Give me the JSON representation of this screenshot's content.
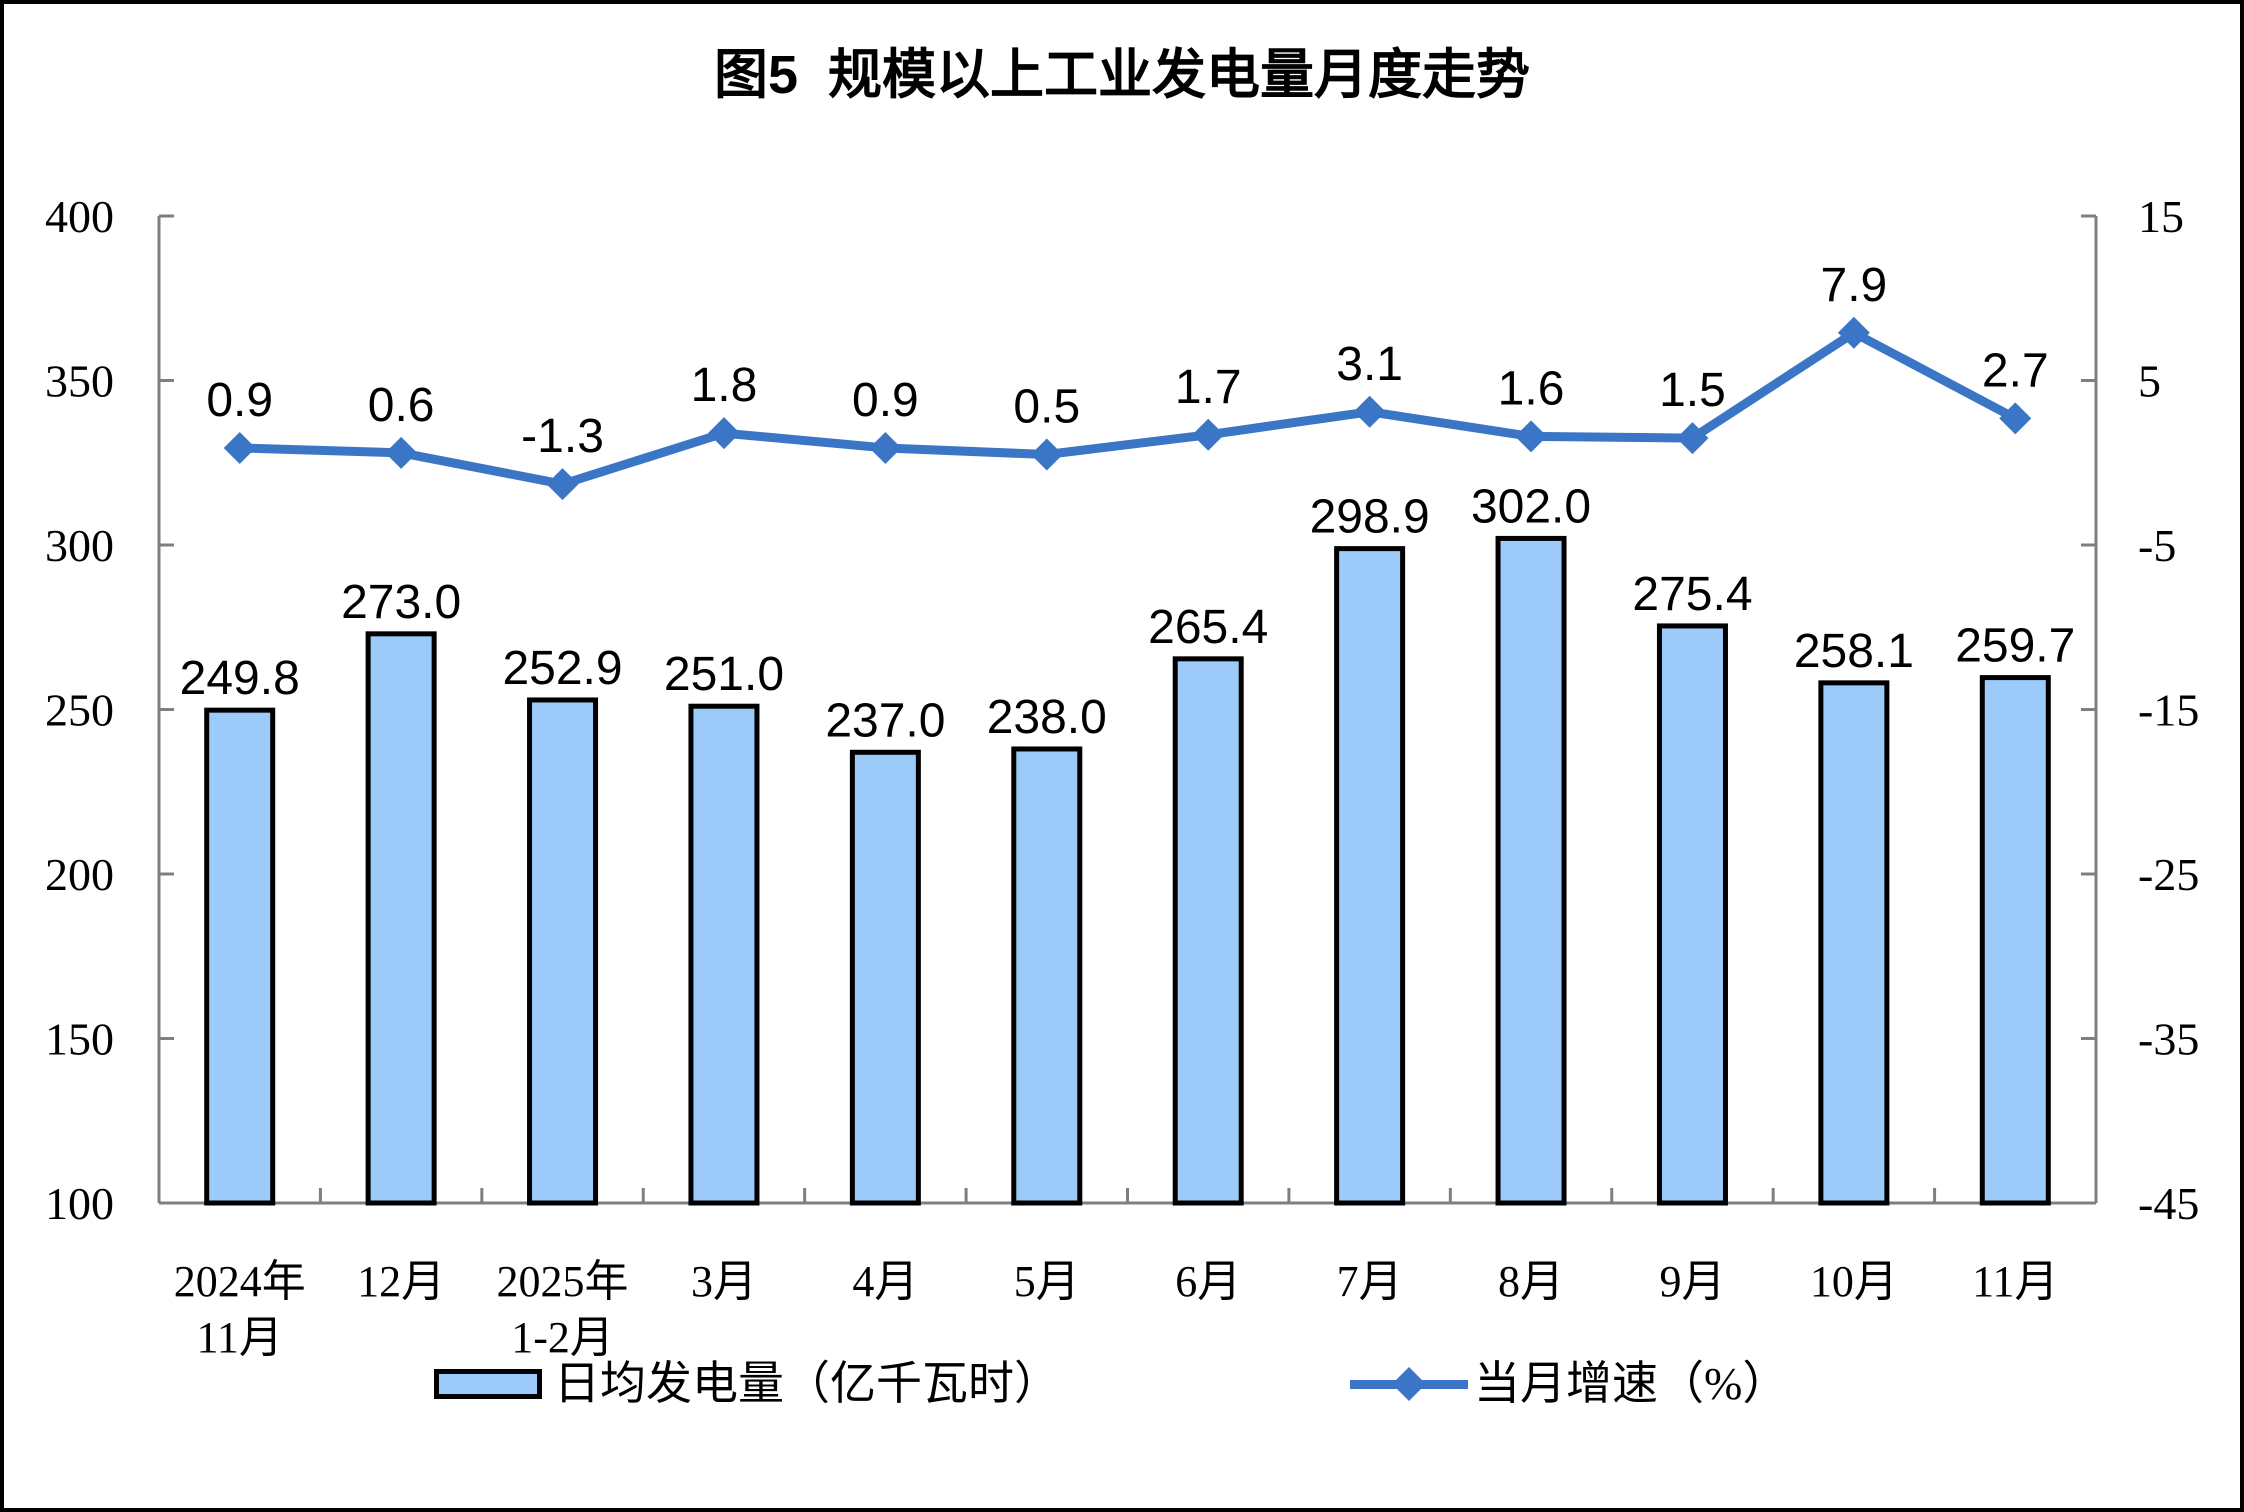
{
  "chart_data": {
    "type": "bar",
    "title": "图5  规模以上工业发电量月度走势",
    "categories": [
      "2024年\n11月",
      "12月",
      "2025年\n1-2月",
      "3月",
      "4月",
      "5月",
      "6月",
      "7月",
      "8月",
      "9月",
      "10月",
      "11月"
    ],
    "series": [
      {
        "name": "日均发电量（亿千瓦时）",
        "type": "bar",
        "axis": "left",
        "values": [
          249.8,
          273.0,
          252.9,
          251.0,
          237.0,
          238.0,
          265.4,
          298.9,
          302.0,
          275.4,
          258.1,
          259.7
        ],
        "labels": [
          "249.8",
          "273.0",
          "252.9",
          "251.0",
          "237.0",
          "238.0",
          "265.4",
          "298.9",
          "302.0",
          "275.4",
          "258.1",
          "259.7"
        ],
        "fill_color": "#9CCBFA",
        "border_color": "#000000"
      },
      {
        "name": "当月增速（%）",
        "type": "line",
        "axis": "right",
        "values": [
          0.9,
          0.6,
          -1.3,
          1.8,
          0.9,
          0.5,
          1.7,
          3.1,
          1.6,
          1.5,
          7.9,
          2.7
        ],
        "labels": [
          "0.9",
          "0.6",
          "-1.3",
          "1.8",
          "0.9",
          "0.5",
          "1.7",
          "3.1",
          "1.6",
          "1.5",
          "7.9",
          "2.7"
        ],
        "color": "#3B76C6",
        "marker": "diamond"
      }
    ],
    "left_axis": {
      "min": 100,
      "max": 400,
      "step": 50,
      "ticks": [
        "400",
        "350",
        "300",
        "250",
        "200",
        "150",
        "100"
      ]
    },
    "right_axis": {
      "min": -45,
      "max": 15,
      "step": 10,
      "ticks": [
        "15",
        "5",
        "-5",
        "-15",
        "-25",
        "-35",
        "-45"
      ]
    },
    "grid": false,
    "legend_position": "bottom",
    "axis_color": "#7F7F7F",
    "text_color": "#000000"
  }
}
